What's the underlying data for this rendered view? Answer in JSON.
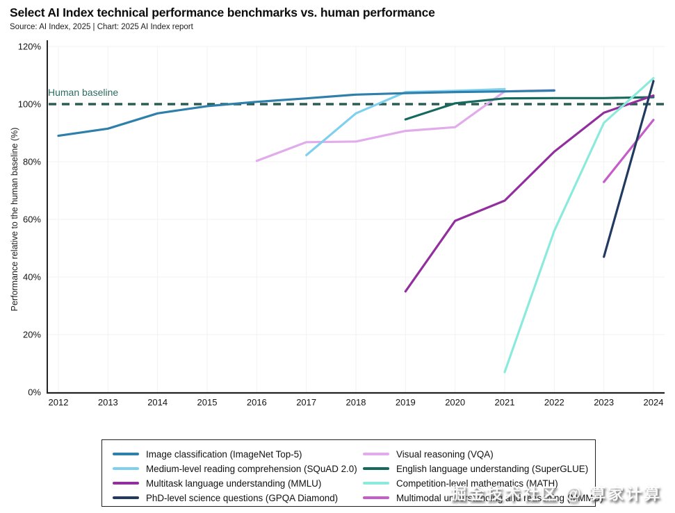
{
  "header": {
    "title": "Select AI Index technical performance benchmarks vs. human performance",
    "source": "Source: AI Index, 2025 | Chart: 2025 AI Index report"
  },
  "watermark": "掘金技术社区 @ 算家计算",
  "chart_data": {
    "type": "line",
    "title": "Select AI Index technical performance benchmarks vs. human performance",
    "xlabel": "",
    "ylabel": "Performance relative to the human baseline (%)",
    "xlim": [
      2012,
      2024
    ],
    "ylim": [
      0,
      120
    ],
    "x_ticks": [
      2012,
      2013,
      2014,
      2015,
      2016,
      2017,
      2018,
      2019,
      2020,
      2021,
      2022,
      2023,
      2024
    ],
    "y_ticks": [
      0,
      20,
      40,
      60,
      80,
      100,
      120
    ],
    "y_tick_suffix": "%",
    "grid": true,
    "legend_position": "bottom",
    "baseline": {
      "label": "Human baseline",
      "value": 100,
      "color": "#2b5b53"
    },
    "series": [
      {
        "key": "imagenet",
        "name": "Image classification (ImageNet Top-5)",
        "color": "#2f7fab",
        "points": [
          [
            2012,
            89
          ],
          [
            2013,
            91.5
          ],
          [
            2014,
            96.8
          ],
          [
            2015,
            99.3
          ],
          [
            2016,
            100.8
          ],
          [
            2017,
            102
          ],
          [
            2018,
            103.3
          ],
          [
            2019,
            103.8
          ],
          [
            2020,
            104.2
          ],
          [
            2021,
            104.4
          ],
          [
            2022,
            104.7
          ]
        ]
      },
      {
        "key": "squad",
        "name": "Medium-level reading comprehension (SQuAD 2.0)",
        "color": "#7fd0ee",
        "points": [
          [
            2017,
            82.3
          ],
          [
            2018,
            96.8
          ],
          [
            2019,
            104.2
          ],
          [
            2020,
            104.6
          ],
          [
            2021,
            105.2
          ]
        ]
      },
      {
        "key": "mmlu",
        "name": "Multitask language understanding (MMLU)",
        "color": "#922e9e",
        "points": [
          [
            2019,
            35
          ],
          [
            2020,
            59.5
          ],
          [
            2021,
            66.5
          ],
          [
            2022,
            83.5
          ],
          [
            2023,
            97
          ],
          [
            2024,
            103
          ]
        ]
      },
      {
        "key": "gpqa",
        "name": "PhD-level science questions (GPQA Diamond)",
        "color": "#213a60",
        "points": [
          [
            2023,
            47
          ],
          [
            2024,
            108
          ]
        ]
      },
      {
        "key": "vqa",
        "name": "Visual reasoning (VQA)",
        "color": "#e2abec",
        "points": [
          [
            2016,
            80.3
          ],
          [
            2017,
            86.8
          ],
          [
            2018,
            87
          ],
          [
            2019,
            90.7
          ],
          [
            2020,
            92
          ],
          [
            2021,
            104.4
          ],
          [
            2022,
            104.9
          ]
        ]
      },
      {
        "key": "superglue",
        "name": "English language understanding (SuperGLUE)",
        "color": "#15695d",
        "points": [
          [
            2019,
            94.7
          ],
          [
            2020,
            100.3
          ],
          [
            2021,
            102
          ],
          [
            2022,
            102.1
          ],
          [
            2023,
            102.1
          ],
          [
            2024,
            102.4
          ]
        ]
      },
      {
        "key": "math",
        "name": "Competition-level mathematics (MATH)",
        "color": "#8aeadc",
        "points": [
          [
            2021,
            7
          ],
          [
            2022,
            56
          ],
          [
            2023,
            93.5
          ],
          [
            2024,
            109
          ]
        ]
      },
      {
        "key": "mmmu",
        "name": "Multimodal understanding and reasoning (MMMU)",
        "color": "#c45dc9",
        "points": [
          [
            2023,
            73
          ],
          [
            2024,
            94.5
          ]
        ]
      }
    ],
    "draw_order": [
      "vqa",
      "squad",
      "imagenet",
      "superglue",
      "mmlu",
      "math",
      "mmmu",
      "gpqa"
    ],
    "legend_columns": [
      [
        "imagenet",
        "squad",
        "mmlu",
        "gpqa"
      ],
      [
        "vqa",
        "superglue",
        "math",
        "mmmu"
      ]
    ]
  }
}
